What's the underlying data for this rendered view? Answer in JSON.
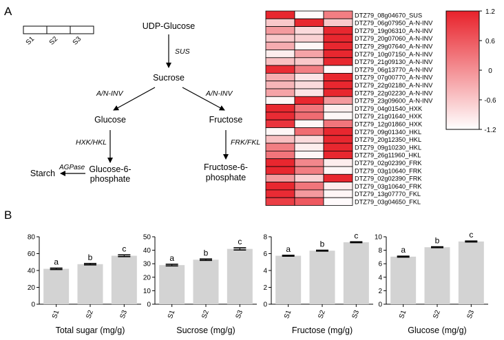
{
  "panel_a": {
    "label": "A",
    "sample_legend": [
      "S1",
      "S2",
      "S3"
    ],
    "pathway": {
      "udp_glucose": "UDP-Glucose",
      "sus": "SUS",
      "sucrose": "Sucrose",
      "ani_left": "A/N-INV",
      "ani_right": "A/N-INV",
      "glucose": "Glucose",
      "fructose": "Fructose",
      "hxk_hkl": "HXK/HKL",
      "frk_fkl": "FRK/FKL",
      "agpase": "AGPase",
      "starch": "Starch",
      "g6p_line1": "Glucose-6-",
      "g6p_line2": "phosphate",
      "f6p_line1": "Fructose-6-",
      "f6p_line2": "phosphate"
    }
  },
  "panel_b": {
    "label": "B"
  },
  "colors": {
    "bar_fill": "#d3d3d3",
    "heat_high": "#e8222b",
    "heat_low": "#ffffff",
    "axis": "#000000"
  },
  "chart_data": [
    {
      "type": "heatmap",
      "columns": [
        "S1",
        "S2",
        "S3"
      ],
      "rows": [
        "DTZ79_08g04670_SUS",
        "DTZ79_06g07950_A-N-INV",
        "DTZ79_19g06310_A-N-INV",
        "DTZ79_20g07060_A-N-INV",
        "DTZ79_29g07640_A-N-INV",
        "DTZ79_10g07150_A-N-INV",
        "DTZ79_21g09130_A-N-INV",
        "DTZ79_06g13770_A-N-INV",
        "DTZ79_07g00770_A-N-INV",
        "DTZ79_22g02180_A-N-INV",
        "DTZ79_22g02230_A-N-INV",
        "DTZ79_23g09600_A-N-INV",
        "DTZ79_04g01540_HXK",
        "DTZ79_21g01640_HXK",
        "DTZ79_12g01860_HXK",
        "DTZ79_09g01340_HKL",
        "DTZ79_20g12350_HKL",
        "DTZ79_09g10230_HKL",
        "DTZ79_26g11960_HKL",
        "DTZ79_02g02390_FRK",
        "DTZ79_03g10640_FRK",
        "DTZ79_02g02390_FRK",
        "DTZ79_03g10640_FRK",
        "DTZ79_13g07770_FKL",
        "DTZ79_03g04650_FKL"
      ],
      "values": [
        [
          1.15,
          -1.15,
          0.2
        ],
        [
          -0.6,
          1.15,
          -0.6
        ],
        [
          -0.1,
          -0.8,
          1.15
        ],
        [
          -0.6,
          -0.7,
          1.15
        ],
        [
          -0.3,
          -1.1,
          1.15
        ],
        [
          -1.0,
          -0.2,
          1.15
        ],
        [
          -0.5,
          -0.6,
          1.15
        ],
        [
          1.1,
          0.2,
          -1.15
        ],
        [
          -0.3,
          -0.9,
          1.15
        ],
        [
          -0.4,
          -0.8,
          1.15
        ],
        [
          -0.2,
          -0.9,
          1.15
        ],
        [
          -1.1,
          1.15,
          -0.1
        ],
        [
          1.15,
          0.3,
          -1.0
        ],
        [
          1.1,
          0.4,
          -1.1
        ],
        [
          1.0,
          -1.1,
          0.3
        ],
        [
          -1.1,
          0.4,
          1.15
        ],
        [
          -0.5,
          -0.8,
          1.15
        ],
        [
          0.2,
          -1.0,
          1.15
        ],
        [
          0.3,
          -1.1,
          1.15
        ],
        [
          1.15,
          0.1,
          -1.0
        ],
        [
          1.15,
          0.2,
          -1.1
        ],
        [
          -0.1,
          -0.7,
          1.15
        ],
        [
          1.15,
          0.3,
          -1.0
        ],
        [
          1.1,
          -0.1,
          -1.1
        ],
        [
          0.9,
          0.6,
          -1.15
        ]
      ],
      "colorbar": {
        "min": -1.2,
        "max": 1.2,
        "ticks": [
          "1.2",
          "0.6",
          "0",
          "-0.6",
          "-1.2"
        ]
      }
    },
    {
      "type": "bar",
      "xlabel": "Total sugar (mg/g)",
      "categories": [
        "S1",
        "S2",
        "S3"
      ],
      "values": [
        42,
        47.5,
        57.5
      ],
      "errors": [
        0.8,
        0.8,
        1.0
      ],
      "letters": [
        "a",
        "b",
        "c"
      ],
      "ylim": [
        0,
        80
      ],
      "yticks": [
        0,
        20,
        40,
        60,
        80
      ]
    },
    {
      "type": "bar",
      "xlabel": "Sucrose (mg/g)",
      "categories": [
        "S1",
        "S2",
        "S3"
      ],
      "values": [
        29,
        33,
        41
      ],
      "errors": [
        0.6,
        0.5,
        0.8
      ],
      "letters": [
        "a",
        "b",
        "c"
      ],
      "ylim": [
        0,
        50
      ],
      "yticks": [
        0,
        10,
        20,
        30,
        40,
        50
      ]
    },
    {
      "type": "bar",
      "xlabel": "Fructose (mg/g)",
      "categories": [
        "S1",
        "S2",
        "S3"
      ],
      "values": [
        5.75,
        6.35,
        7.35
      ],
      "errors": [
        0.05,
        0.05,
        0.05
      ],
      "letters": [
        "a",
        "b",
        "c"
      ],
      "ylim": [
        0,
        8
      ],
      "yticks": [
        0,
        2,
        4,
        6,
        8
      ]
    },
    {
      "type": "bar",
      "xlabel": "Glucose (mg/g)",
      "categories": [
        "S1",
        "S2",
        "S3"
      ],
      "values": [
        7.05,
        8.45,
        9.3
      ],
      "errors": [
        0.07,
        0.07,
        0.07
      ],
      "letters": [
        "a",
        "b",
        "c"
      ],
      "ylim": [
        0,
        10
      ],
      "yticks": [
        0,
        2,
        4,
        6,
        8,
        10
      ]
    }
  ]
}
